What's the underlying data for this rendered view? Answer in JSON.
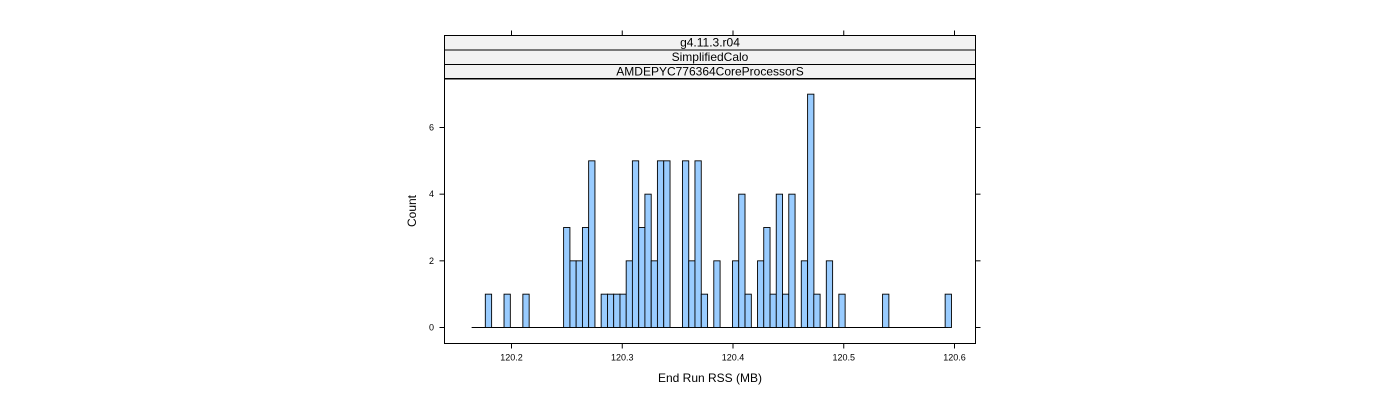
{
  "chart_data": {
    "type": "bar",
    "title": "",
    "panel_strips": [
      "g4.11.3.r04",
      "SimplifiedCalo",
      "AMDEPYC776364CoreProcessorS"
    ],
    "xlabel": "End Run RSS (MB)",
    "ylabel": "Count",
    "xlim": [
      120.14,
      120.62
    ],
    "ylim": [
      -0.5,
      7.2
    ],
    "x_ticks": [
      120.2,
      120.3,
      120.4,
      120.5,
      120.6
    ],
    "x_tick_labels": [
      "120.2",
      "120.3",
      "120.4",
      "120.5",
      "120.6"
    ],
    "y_ticks": [
      0,
      2,
      4,
      6
    ],
    "y_tick_labels": [
      "0",
      "2",
      "4",
      "6"
    ],
    "bin_width": 0.0057,
    "baseline": {
      "from": 120.164,
      "to": 120.594
    },
    "bar_color": "#99ccff",
    "bars": [
      {
        "x": 120.1792,
        "count": 1
      },
      {
        "x": 120.1961,
        "count": 1
      },
      {
        "x": 120.2131,
        "count": 1
      },
      {
        "x": 120.2499,
        "count": 3
      },
      {
        "x": 120.2556,
        "count": 2
      },
      {
        "x": 120.2612,
        "count": 2
      },
      {
        "x": 120.2669,
        "count": 3
      },
      {
        "x": 120.2725,
        "count": 5
      },
      {
        "x": 120.2838,
        "count": 1
      },
      {
        "x": 120.2895,
        "count": 1
      },
      {
        "x": 120.2951,
        "count": 1
      },
      {
        "x": 120.3008,
        "count": 1
      },
      {
        "x": 120.3064,
        "count": 2
      },
      {
        "x": 120.312,
        "count": 5
      },
      {
        "x": 120.3177,
        "count": 3
      },
      {
        "x": 120.3233,
        "count": 4
      },
      {
        "x": 120.329,
        "count": 2
      },
      {
        "x": 120.3346,
        "count": 5
      },
      {
        "x": 120.3403,
        "count": 5
      },
      {
        "x": 120.3572,
        "count": 5
      },
      {
        "x": 120.3629,
        "count": 2
      },
      {
        "x": 120.3685,
        "count": 5
      },
      {
        "x": 120.3742,
        "count": 1
      },
      {
        "x": 120.3855,
        "count": 2
      },
      {
        "x": 120.4024,
        "count": 2
      },
      {
        "x": 120.408,
        "count": 4
      },
      {
        "x": 120.4137,
        "count": 1
      },
      {
        "x": 120.425,
        "count": 2
      },
      {
        "x": 120.4306,
        "count": 3
      },
      {
        "x": 120.4363,
        "count": 1
      },
      {
        "x": 120.4419,
        "count": 4
      },
      {
        "x": 120.4476,
        "count": 1
      },
      {
        "x": 120.4532,
        "count": 4
      },
      {
        "x": 120.4645,
        "count": 2
      },
      {
        "x": 120.4702,
        "count": 7
      },
      {
        "x": 120.4758,
        "count": 1
      },
      {
        "x": 120.4871,
        "count": 2
      },
      {
        "x": 120.4984,
        "count": 1
      },
      {
        "x": 120.5379,
        "count": 1
      },
      {
        "x": 120.5944,
        "count": 1
      }
    ]
  }
}
